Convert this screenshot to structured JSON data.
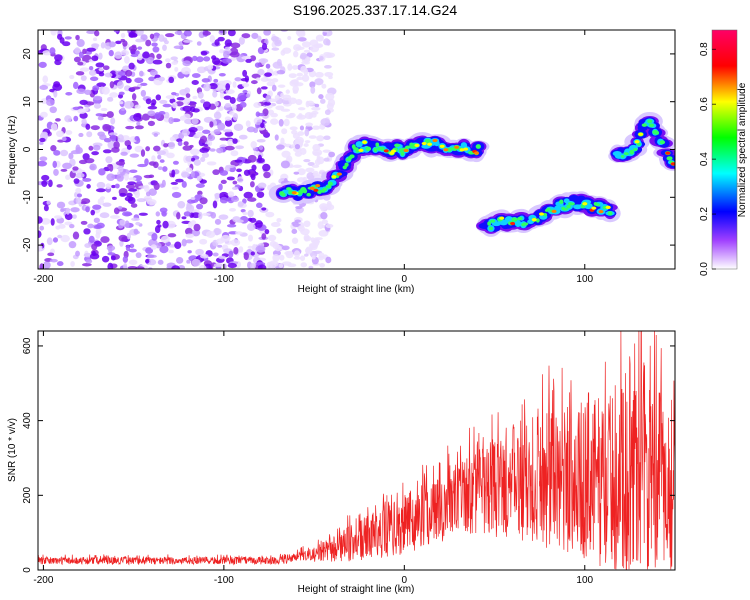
{
  "title": "S196.2025.337.17.14.G24",
  "chart_data": [
    {
      "type": "heatmap",
      "xlabel": "Height of straight line (km)",
      "ylabel": "Frequency (Hz)",
      "xlim": [
        -203,
        150
      ],
      "ylim": [
        -25,
        25
      ],
      "xticks": [
        -200,
        -100,
        0,
        100
      ],
      "xtick_labels": [
        "-200",
        "-100",
        "0",
        "100"
      ],
      "yticks": [
        -20,
        -10,
        0,
        10,
        20
      ],
      "ytick_labels": [
        "-20",
        "-10",
        "0",
        "10",
        "20"
      ],
      "colorbar": {
        "label": "Normalized spectral amplitude",
        "range": [
          0,
          0.87
        ],
        "ticks": [
          0.0,
          0.2,
          0.4,
          0.6,
          0.8
        ],
        "tick_labels": [
          "0.0",
          "0.2",
          "0.4",
          "0.6",
          "0.8"
        ],
        "colors": [
          "#ffffff",
          "#8a2be2",
          "#0000ff",
          "#00ffff",
          "#00ff00",
          "#ffff00",
          "#ff0000",
          "#ff0066"
        ]
      },
      "noise_region": {
        "x_range": [
          -203,
          -55
        ],
        "y_range": [
          -25,
          25
        ]
      },
      "ridge": [
        {
          "x": -68,
          "y": -9
        },
        {
          "x": -55,
          "y": -9
        },
        {
          "x": -45,
          "y": -8
        },
        {
          "x": -38,
          "y": -6
        },
        {
          "x": -33,
          "y": -3
        },
        {
          "x": -28,
          "y": 0
        },
        {
          "x": -20,
          "y": 1
        },
        {
          "x": -10,
          "y": 0
        },
        {
          "x": 0,
          "y": 0
        },
        {
          "x": 10,
          "y": 1
        },
        {
          "x": 20,
          "y": 1
        },
        {
          "x": 30,
          "y": 0
        },
        {
          "x": 42,
          "y": 0
        },
        {
          "x": 45,
          "y": -16
        },
        {
          "x": 55,
          "y": -15
        },
        {
          "x": 65,
          "y": -15
        },
        {
          "x": 75,
          "y": -14
        },
        {
          "x": 85,
          "y": -12
        },
        {
          "x": 95,
          "y": -11
        },
        {
          "x": 105,
          "y": -12
        },
        {
          "x": 115,
          "y": -13
        },
        {
          "x": 118,
          "y": -1
        },
        {
          "x": 125,
          "y": -1
        },
        {
          "x": 130,
          "y": 2
        },
        {
          "x": 135,
          "y": 6
        },
        {
          "x": 140,
          "y": 3
        },
        {
          "x": 145,
          "y": 0
        },
        {
          "x": 150,
          "y": -3
        }
      ]
    },
    {
      "type": "line",
      "xlabel": "Height of straight line (km)",
      "ylabel": "SNR (10 * v/v)",
      "xlim": [
        -203,
        150
      ],
      "ylim": [
        0,
        640
      ],
      "xticks": [
        -200,
        -100,
        0,
        100
      ],
      "xtick_labels": [
        "-200",
        "-100",
        "0",
        "100"
      ],
      "yticks": [
        0,
        200,
        400,
        600
      ],
      "ytick_labels": [
        "0",
        "200",
        "400",
        "600"
      ],
      "color": "#ee2222",
      "envelope": [
        {
          "x": -203,
          "base": 25,
          "amp": 10
        },
        {
          "x": -70,
          "base": 25,
          "amp": 10
        },
        {
          "x": -50,
          "base": 40,
          "amp": 20
        },
        {
          "x": -30,
          "base": 70,
          "amp": 50
        },
        {
          "x": 0,
          "base": 120,
          "amp": 80
        },
        {
          "x": 30,
          "base": 190,
          "amp": 100
        },
        {
          "x": 60,
          "base": 230,
          "amp": 150
        },
        {
          "x": 90,
          "base": 240,
          "amp": 200
        },
        {
          "x": 120,
          "base": 240,
          "amp": 250
        },
        {
          "x": 150,
          "base": 230,
          "amp": 250
        }
      ],
      "max_point": {
        "x": 130,
        "y": 640
      }
    }
  ]
}
